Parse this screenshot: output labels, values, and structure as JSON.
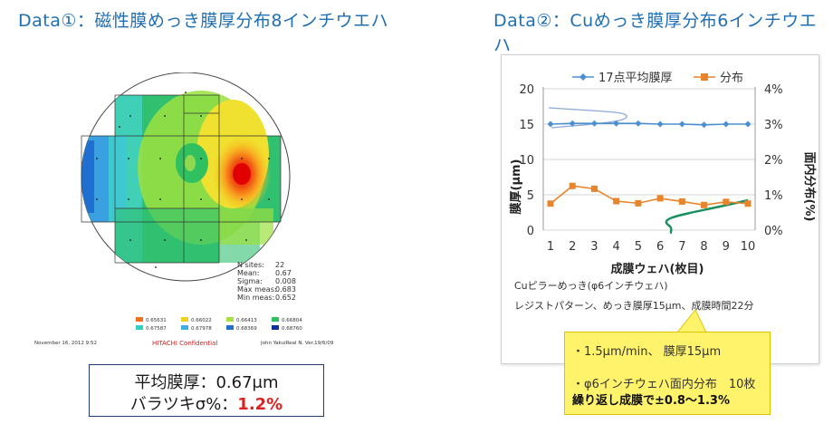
{
  "titles": {
    "left": "Data①：磁性膜めっき膜厚分布8インチウエハ",
    "right": "Data②：Cuめっき膜厚分布6インチウエハ"
  },
  "wafer_map": {
    "stats": [
      {
        "label": "N sites:",
        "value": "22"
      },
      {
        "label": "Mean:",
        "value": "0.67"
      },
      {
        "label": "Sigma:",
        "value": "0.008"
      },
      {
        "label": "Max meas:",
        "value": "0.683"
      },
      {
        "label": "Min meas:",
        "value": "0.652"
      }
    ],
    "legend": [
      {
        "color": "#f07020",
        "value": "0.65631"
      },
      {
        "color": "#f0d020",
        "value": "0.66022"
      },
      {
        "color": "#a8e040",
        "value": "0.66413"
      },
      {
        "color": "#30c060",
        "value": "0.66804"
      },
      {
        "color": "#30d0c0",
        "value": "0.67587"
      },
      {
        "color": "#40b0e0",
        "value": "0.67978"
      },
      {
        "color": "#2070d0",
        "value": "0.68369"
      },
      {
        "color": "#1030a0",
        "value": "0.68760"
      }
    ],
    "footer_left": "November 16, 2012   9:52",
    "footer_center": "HITACHI Confidential",
    "footer_right": "John YakuiReal N. Ver.19/6/09"
  },
  "summary": {
    "line1": "平均膜厚：0.67μm",
    "line2_prefix": "バラツキσ%：",
    "line2_value": "1.2%"
  },
  "chart_data": {
    "type": "line",
    "x": [
      1,
      2,
      3,
      4,
      5,
      6,
      7,
      8,
      9,
      10
    ],
    "xlabel": "成膜ウェハ(枚目)",
    "ylabel_left": "膜厚(μm)",
    "ylabel_right": "面内分布(%)",
    "ylim_left": [
      0,
      20
    ],
    "yticks_left": [
      "0",
      "5",
      "10",
      "15",
      "20"
    ],
    "ylim_right": [
      0,
      4
    ],
    "yticks_right": [
      "0%",
      "1%",
      "2%",
      "3%",
      "4%"
    ],
    "legend_position": "top",
    "series": [
      {
        "name": "17点平均膜厚",
        "axis": "left",
        "color": "#4a90d0",
        "values": [
          15.0,
          15.1,
          15.1,
          15.1,
          15.1,
          15.0,
          15.0,
          14.9,
          15.0,
          15.0
        ]
      },
      {
        "name": "分布",
        "axis": "right",
        "color": "#e8842a",
        "values": [
          0.75,
          1.25,
          1.17,
          0.82,
          0.76,
          0.9,
          0.81,
          0.71,
          0.8,
          0.75
        ]
      }
    ]
  },
  "captions": {
    "line1": "Cuピラーめっき(φ6インチウェハ)",
    "line2": "レジストパターン、めっき膜厚15μm、成膜時間22分"
  },
  "callout": {
    "line1": "・1.5μm/min、 膜厚15μm",
    "line2": "・φ6インチウェハ面内分布　10枚",
    "line3": "繰り返し成膜で±0.8～1.3%"
  }
}
